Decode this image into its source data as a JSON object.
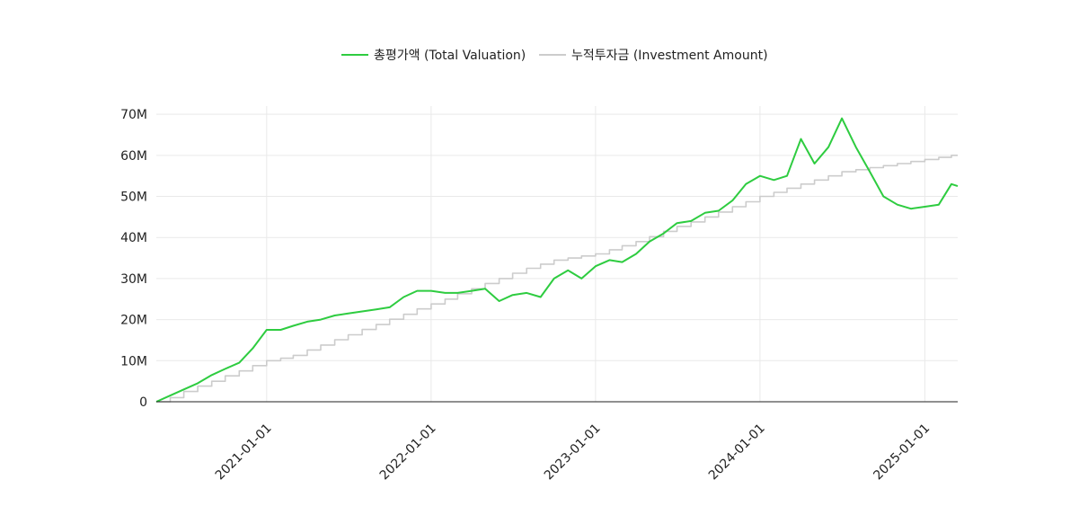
{
  "chart_data": {
    "type": "line",
    "legend": {
      "placement": "top-center"
    },
    "grid": true,
    "xlim": [
      "2020-05-01",
      "2025-03-15"
    ],
    "ylim": [
      0,
      72000000
    ],
    "x_ticks": [
      "2021-01-01",
      "2022-01-01",
      "2023-01-01",
      "2024-01-01",
      "2025-01-01"
    ],
    "y_ticks": [
      {
        "value": 0,
        "label": "0"
      },
      {
        "value": 10000000,
        "label": "10M"
      },
      {
        "value": 20000000,
        "label": "20M"
      },
      {
        "value": 30000000,
        "label": "30M"
      },
      {
        "value": 40000000,
        "label": "40M"
      },
      {
        "value": 50000000,
        "label": "50M"
      },
      {
        "value": 60000000,
        "label": "60M"
      },
      {
        "value": 70000000,
        "label": "70M"
      }
    ],
    "series": [
      {
        "name": "총평가액 (Total Valuation)",
        "color": "#2ecc40",
        "style": "line",
        "points": [
          [
            "2020-05-01",
            0
          ],
          [
            "2020-06-01",
            1500000
          ],
          [
            "2020-07-01",
            3000000
          ],
          [
            "2020-08-01",
            4500000
          ],
          [
            "2020-09-01",
            6500000
          ],
          [
            "2020-10-01",
            8000000
          ],
          [
            "2020-11-01",
            9500000
          ],
          [
            "2020-12-01",
            13000000
          ],
          [
            "2021-01-01",
            17500000
          ],
          [
            "2021-02-01",
            17500000
          ],
          [
            "2021-03-01",
            18500000
          ],
          [
            "2021-04-01",
            19500000
          ],
          [
            "2021-05-01",
            20000000
          ],
          [
            "2021-06-01",
            21000000
          ],
          [
            "2021-07-01",
            21500000
          ],
          [
            "2021-08-01",
            22000000
          ],
          [
            "2021-09-01",
            22500000
          ],
          [
            "2021-10-01",
            23000000
          ],
          [
            "2021-11-01",
            25500000
          ],
          [
            "2021-12-01",
            27000000
          ],
          [
            "2022-01-01",
            27000000
          ],
          [
            "2022-02-01",
            26500000
          ],
          [
            "2022-03-01",
            26500000
          ],
          [
            "2022-04-01",
            27000000
          ],
          [
            "2022-05-01",
            27500000
          ],
          [
            "2022-06-01",
            24500000
          ],
          [
            "2022-07-01",
            26000000
          ],
          [
            "2022-08-01",
            26500000
          ],
          [
            "2022-09-01",
            25500000
          ],
          [
            "2022-10-01",
            30000000
          ],
          [
            "2022-11-01",
            32000000
          ],
          [
            "2022-12-01",
            30000000
          ],
          [
            "2023-01-01",
            33000000
          ],
          [
            "2023-02-01",
            34500000
          ],
          [
            "2023-03-01",
            34000000
          ],
          [
            "2023-04-01",
            36000000
          ],
          [
            "2023-05-01",
            39000000
          ],
          [
            "2023-06-01",
            41000000
          ],
          [
            "2023-07-01",
            43500000
          ],
          [
            "2023-08-01",
            44000000
          ],
          [
            "2023-09-01",
            46000000
          ],
          [
            "2023-10-01",
            46500000
          ],
          [
            "2023-11-01",
            49000000
          ],
          [
            "2023-12-01",
            53000000
          ],
          [
            "2024-01-01",
            55000000
          ],
          [
            "2024-02-01",
            54000000
          ],
          [
            "2024-03-01",
            55000000
          ],
          [
            "2024-04-01",
            64000000
          ],
          [
            "2024-05-01",
            58000000
          ],
          [
            "2024-06-01",
            62000000
          ],
          [
            "2024-07-01",
            69000000
          ],
          [
            "2024-08-01",
            62000000
          ],
          [
            "2024-09-01",
            56000000
          ],
          [
            "2024-10-01",
            50000000
          ],
          [
            "2024-11-01",
            48000000
          ],
          [
            "2024-12-01",
            47000000
          ],
          [
            "2025-01-01",
            47500000
          ],
          [
            "2025-02-01",
            48000000
          ],
          [
            "2025-03-01",
            53000000
          ],
          [
            "2025-03-15",
            52500000
          ]
        ]
      },
      {
        "name": "누적투자금 (Investment Amount)",
        "color": "#cccccc",
        "style": "step",
        "points": [
          [
            "2020-05-01",
            0
          ],
          [
            "2020-06-01",
            1000000
          ],
          [
            "2020-07-01",
            2500000
          ],
          [
            "2020-08-01",
            3800000
          ],
          [
            "2020-09-01",
            5000000
          ],
          [
            "2020-10-01",
            6300000
          ],
          [
            "2020-11-01",
            7500000
          ],
          [
            "2020-12-01",
            8800000
          ],
          [
            "2021-01-01",
            10000000
          ],
          [
            "2021-02-01",
            10600000
          ],
          [
            "2021-03-01",
            11300000
          ],
          [
            "2021-04-01",
            12600000
          ],
          [
            "2021-05-01",
            13800000
          ],
          [
            "2021-06-01",
            15100000
          ],
          [
            "2021-07-01",
            16300000
          ],
          [
            "2021-08-01",
            17600000
          ],
          [
            "2021-09-01",
            18800000
          ],
          [
            "2021-10-01",
            20100000
          ],
          [
            "2021-11-01",
            21300000
          ],
          [
            "2021-12-01",
            22600000
          ],
          [
            "2022-01-01",
            23800000
          ],
          [
            "2022-02-01",
            25000000
          ],
          [
            "2022-03-01",
            26300000
          ],
          [
            "2022-04-01",
            27500000
          ],
          [
            "2022-05-01",
            28800000
          ],
          [
            "2022-06-01",
            30000000
          ],
          [
            "2022-07-01",
            31300000
          ],
          [
            "2022-08-01",
            32500000
          ],
          [
            "2022-09-01",
            33500000
          ],
          [
            "2022-10-01",
            34500000
          ],
          [
            "2022-11-01",
            35000000
          ],
          [
            "2022-12-01",
            35500000
          ],
          [
            "2023-01-01",
            36000000
          ],
          [
            "2023-02-01",
            37000000
          ],
          [
            "2023-03-01",
            38000000
          ],
          [
            "2023-04-01",
            39000000
          ],
          [
            "2023-05-01",
            40200000
          ],
          [
            "2023-06-01",
            41500000
          ],
          [
            "2023-07-01",
            42700000
          ],
          [
            "2023-08-01",
            43800000
          ],
          [
            "2023-09-01",
            45000000
          ],
          [
            "2023-10-01",
            46200000
          ],
          [
            "2023-11-01",
            47500000
          ],
          [
            "2023-12-01",
            48700000
          ],
          [
            "2024-01-01",
            50000000
          ],
          [
            "2024-02-01",
            51000000
          ],
          [
            "2024-03-01",
            52000000
          ],
          [
            "2024-04-01",
            53000000
          ],
          [
            "2024-05-01",
            54000000
          ],
          [
            "2024-06-01",
            55000000
          ],
          [
            "2024-07-01",
            56000000
          ],
          [
            "2024-08-01",
            56500000
          ],
          [
            "2024-09-01",
            57000000
          ],
          [
            "2024-10-01",
            57500000
          ],
          [
            "2024-11-01",
            58000000
          ],
          [
            "2024-12-01",
            58500000
          ],
          [
            "2025-01-01",
            59000000
          ],
          [
            "2025-02-01",
            59500000
          ],
          [
            "2025-03-01",
            60000000
          ],
          [
            "2025-03-15",
            60000000
          ]
        ]
      }
    ]
  }
}
